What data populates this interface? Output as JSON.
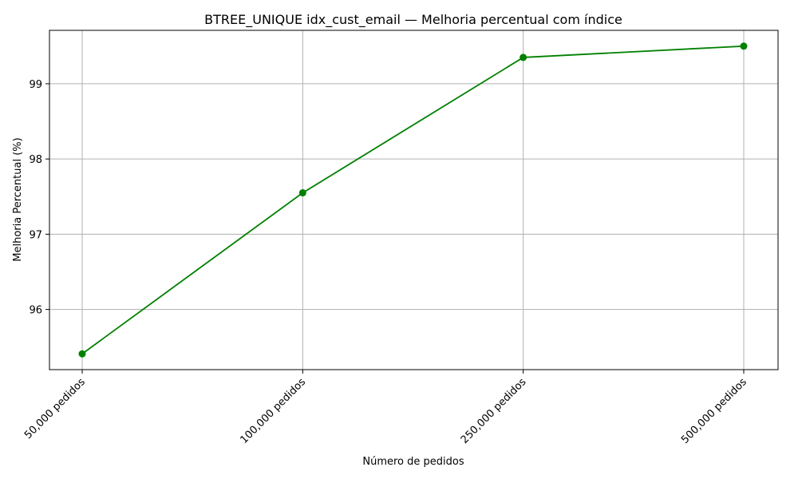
{
  "chart_data": {
    "type": "line",
    "title": "BTREE_UNIQUE idx_cust_email — Melhoria percentual com índice",
    "xlabel": "Número de pedidos",
    "ylabel": "Melhoria Percentual (%)",
    "categories": [
      "50,000 pedidos",
      "100,000 pedidos",
      "250,000 pedidos",
      "500,000 pedidos"
    ],
    "series": [
      {
        "values": [
          95.41,
          97.55,
          99.35,
          99.5
        ],
        "color": "#008000",
        "marker": "circle"
      }
    ],
    "ylim": [
      95.2,
      99.71
    ],
    "yticks": [
      96,
      97,
      98,
      99
    ],
    "grid": true,
    "tick_rotation_x": 45
  }
}
